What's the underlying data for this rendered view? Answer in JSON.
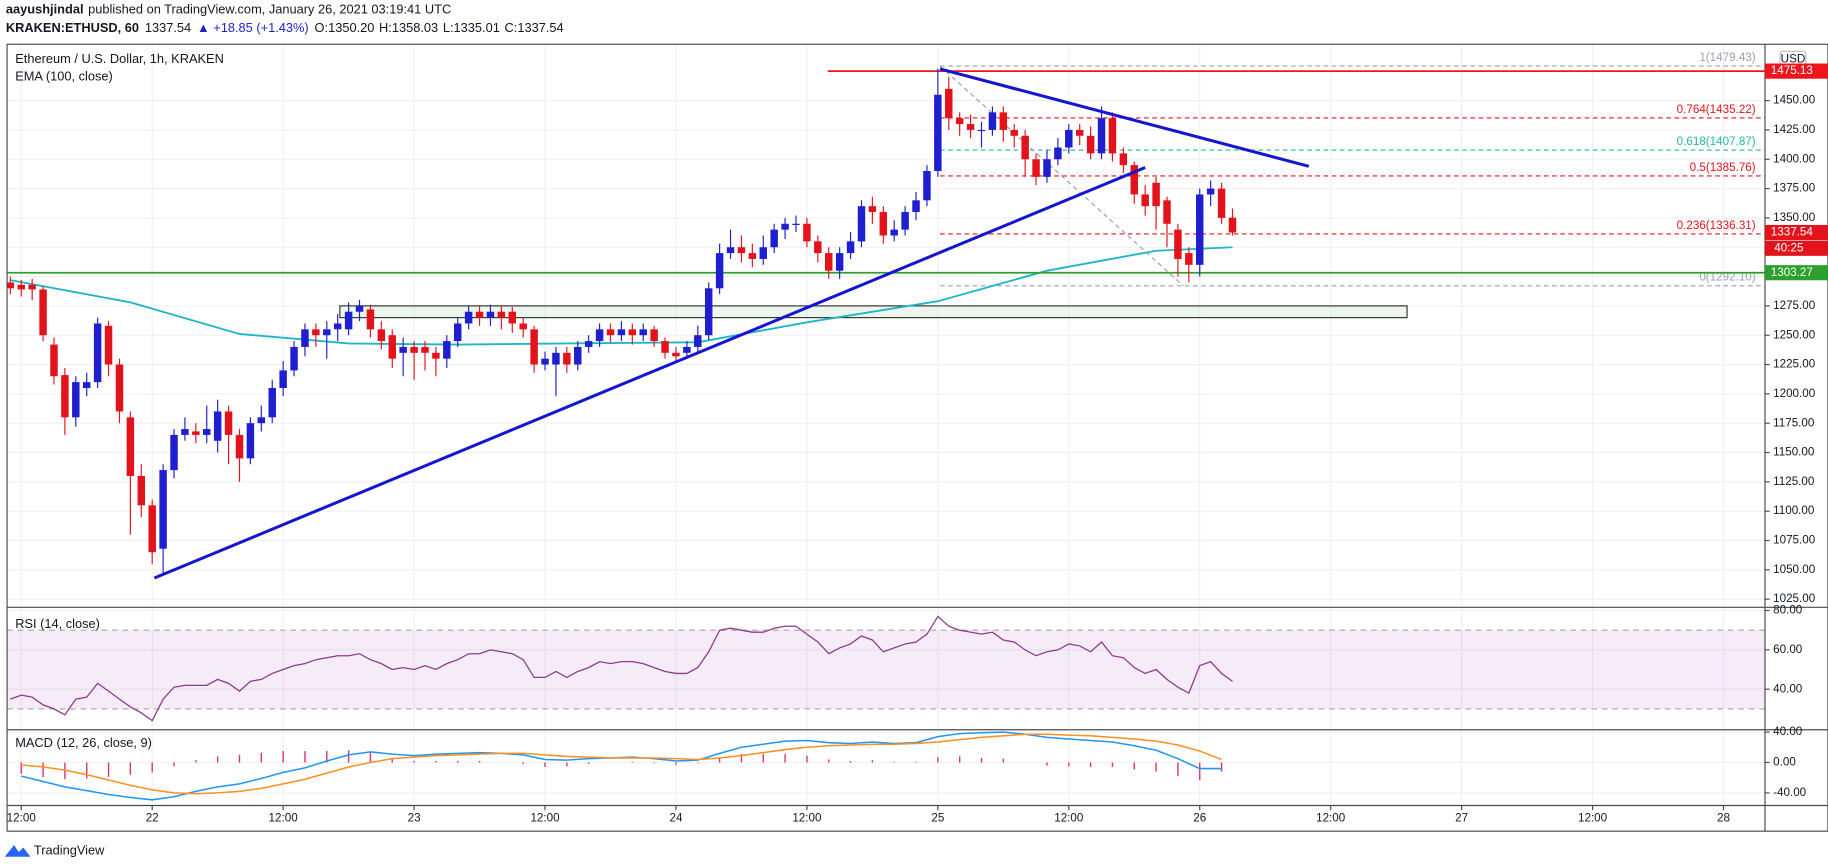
{
  "header": {
    "author": "aayushjindal",
    "published": "published on TradingView.com, January 26, 2021 03:19:41 UTC",
    "symbol": "KRAKEN:ETHUSD, 60",
    "price": "1337.54",
    "change": "▲ +18.85 (+1.43%)",
    "open": "O:1350.20",
    "high": "H:1358.03",
    "low": "L:1335.01",
    "close": "C:1337.54"
  },
  "footer": {
    "brand": "TradingView"
  },
  "chart_data": [
    {
      "type": "candlestick",
      "title": "Ethereum / U.S. Dollar, 1h, KRAKEN",
      "currency": "USD",
      "countdown": "40:25",
      "up_color": "#1f1fcf",
      "down_color": "#e3131b",
      "x": [
        -1,
        0,
        1,
        2,
        3,
        4,
        5,
        6,
        7,
        8,
        9,
        10,
        11,
        12,
        13,
        14,
        15,
        16,
        17,
        18,
        19,
        20,
        21,
        22,
        23,
        24,
        25,
        26,
        27,
        28,
        29,
        30,
        31,
        32,
        33,
        34,
        35,
        36,
        37,
        38,
        39,
        40,
        41,
        42,
        43,
        44,
        45,
        46,
        47,
        48,
        49,
        50,
        51,
        52,
        53,
        54,
        55,
        56,
        57,
        58,
        59,
        60,
        61,
        62,
        63,
        64,
        65,
        66,
        67,
        68,
        69,
        70,
        71,
        72,
        73,
        74,
        75,
        76,
        77,
        78,
        79,
        80,
        81,
        82,
        83,
        84,
        85,
        86,
        87,
        88,
        89,
        90,
        91,
        92,
        93,
        94,
        95,
        96,
        97,
        98,
        99,
        100,
        101,
        102,
        103,
        104,
        105,
        106,
        107,
        108,
        109,
        110,
        111
      ],
      "open": [
        1295,
        1293,
        1293,
        1289,
        1242,
        1216,
        1180,
        1205,
        1210,
        1258,
        1225,
        1180,
        1130,
        1105,
        1068,
        1135,
        1165,
        1168,
        1165,
        1160,
        1185,
        1165,
        1145,
        1175,
        1180,
        1205,
        1220,
        1240,
        1255,
        1250,
        1255,
        1255,
        1270,
        1272,
        1255,
        1250,
        1235,
        1240,
        1240,
        1235,
        1230,
        1245,
        1260,
        1270,
        1265,
        1270,
        1270,
        1260,
        1255,
        1225,
        1225,
        1235,
        1225,
        1240,
        1245,
        1255,
        1250,
        1255,
        1250,
        1255,
        1245,
        1235,
        1235,
        1240,
        1250,
        1290,
        1320,
        1325,
        1320,
        1315,
        1325,
        1340,
        1345,
        1345,
        1330,
        1320,
        1305,
        1320,
        1330,
        1360,
        1355,
        1335,
        1340,
        1355,
        1365,
        1390,
        1460,
        1435,
        1430,
        1425,
        1425,
        1440,
        1425,
        1420,
        1400,
        1385,
        1400,
        1410,
        1425,
        1420,
        1405,
        1435,
        1405,
        1395,
        1370,
        1380,
        1365,
        1340,
        1320,
        1310,
        1370,
        1375,
        1350.2
      ],
      "high": [
        1300,
        1297,
        1298,
        1292,
        1248,
        1222,
        1215,
        1218,
        1265,
        1262,
        1230,
        1185,
        1140,
        1110,
        1140,
        1170,
        1180,
        1175,
        1190,
        1195,
        1190,
        1170,
        1180,
        1190,
        1212,
        1228,
        1245,
        1260,
        1260,
        1262,
        1268,
        1278,
        1280,
        1276,
        1262,
        1255,
        1248,
        1245,
        1245,
        1240,
        1250,
        1265,
        1275,
        1275,
        1276,
        1275,
        1274,
        1265,
        1258,
        1236,
        1240,
        1240,
        1245,
        1250,
        1260,
        1260,
        1262,
        1260,
        1260,
        1258,
        1248,
        1240,
        1245,
        1258,
        1295,
        1328,
        1340,
        1335,
        1328,
        1335,
        1345,
        1350,
        1352,
        1350,
        1335,
        1325,
        1325,
        1338,
        1365,
        1368,
        1360,
        1348,
        1360,
        1372,
        1395,
        1477,
        1470,
        1440,
        1438,
        1432,
        1445,
        1445,
        1430,
        1425,
        1405,
        1408,
        1418,
        1430,
        1430,
        1428,
        1445,
        1440,
        1410,
        1398,
        1378,
        1385,
        1368,
        1345,
        1325,
        1375,
        1382,
        1380,
        1358.03
      ],
      "low": [
        1285,
        1283,
        1280,
        1245,
        1208,
        1165,
        1172,
        1198,
        1205,
        1215,
        1175,
        1080,
        1095,
        1055,
        1045,
        1128,
        1160,
        1158,
        1158,
        1150,
        1140,
        1125,
        1140,
        1168,
        1175,
        1198,
        1215,
        1232,
        1240,
        1230,
        1245,
        1250,
        1262,
        1248,
        1238,
        1222,
        1215,
        1212,
        1220,
        1215,
        1222,
        1240,
        1255,
        1258,
        1258,
        1255,
        1252,
        1248,
        1218,
        1220,
        1198,
        1218,
        1220,
        1235,
        1240,
        1244,
        1245,
        1242,
        1245,
        1240,
        1230,
        1228,
        1230,
        1236,
        1246,
        1285,
        1315,
        1312,
        1308,
        1310,
        1320,
        1332,
        1338,
        1325,
        1312,
        1298,
        1298,
        1315,
        1325,
        1345,
        1328,
        1330,
        1335,
        1348,
        1360,
        1385,
        1425,
        1420,
        1418,
        1410,
        1420,
        1415,
        1410,
        1385,
        1378,
        1380,
        1395,
        1405,
        1412,
        1400,
        1400,
        1398,
        1388,
        1362,
        1352,
        1340,
        1325,
        1300,
        1295,
        1300,
        1360,
        1345,
        1335.01
      ],
      "close": [
        1290,
        1289,
        1289,
        1250,
        1215,
        1180,
        1210,
        1210,
        1260,
        1225,
        1185,
        1130,
        1105,
        1065,
        1135,
        1165,
        1170,
        1165,
        1170,
        1185,
        1165,
        1145,
        1175,
        1180,
        1205,
        1220,
        1240,
        1255,
        1250,
        1255,
        1260,
        1270,
        1275,
        1255,
        1245,
        1230,
        1240,
        1235,
        1235,
        1230,
        1245,
        1260,
        1270,
        1265,
        1270,
        1265,
        1260,
        1255,
        1225,
        1230,
        1235,
        1225,
        1240,
        1245,
        1255,
        1250,
        1255,
        1250,
        1255,
        1245,
        1235,
        1232,
        1240,
        1250,
        1290,
        1320,
        1325,
        1320,
        1315,
        1325,
        1340,
        1345,
        1345,
        1330,
        1320,
        1305,
        1320,
        1330,
        1360,
        1355,
        1335,
        1340,
        1355,
        1365,
        1390,
        1455,
        1435,
        1430,
        1425,
        1425,
        1440,
        1425,
        1420,
        1400,
        1385,
        1400,
        1410,
        1425,
        1420,
        1405,
        1435,
        1405,
        1395,
        1370,
        1360,
        1360,
        1345,
        1315,
        1310,
        1370,
        1375,
        1350,
        1337.54
      ],
      "series": [
        {
          "name": "EMA (100, close)",
          "color": "#1fb5c9",
          "x": [
            -1,
            10,
            20,
            30,
            40,
            50,
            62,
            72,
            84,
            94,
            104,
            111
          ],
          "values": [
            1297,
            1278,
            1251,
            1243,
            1242,
            1243,
            1244,
            1261,
            1279,
            1305,
            1322,
            1325
          ]
        }
      ],
      "hlines": [
        {
          "price": 1475.13,
          "color": "#f0141c",
          "start": 73.9
        },
        {
          "price": 1303.27,
          "color": "#2ca02c"
        }
      ],
      "zone": {
        "x": [
          29.2,
          127
        ],
        "y": [
          1265,
          1275
        ]
      },
      "trendlines": [
        {
          "x": [
            12.2,
            103
          ],
          "y": [
            1043,
            1393
          ],
          "color": "#1515d0"
        },
        {
          "x": [
            84.2,
            118
          ],
          "y": [
            1477,
            1394
          ],
          "color": "#1515d0"
        }
      ],
      "fib": {
        "x": [
          84.2,
          106.5
        ],
        "levels": [
          {
            "price": 1479.43,
            "label": "1(1479.43)",
            "color": "#9aa0ad"
          },
          {
            "price": 1435.22,
            "label": "0.764(1435.22)",
            "color": "#e3131b"
          },
          {
            "price": 1407.87,
            "label": "0.618(1407.87)",
            "color": "#22b89a"
          },
          {
            "price": 1385.76,
            "label": "0.5(1385.76)",
            "color": "#e3131b"
          },
          {
            "price": 1336.31,
            "label": "0.236(1336.31)",
            "color": "#e3131b"
          },
          {
            "price": 1292.1,
            "label": "0(1292.10)",
            "color": "#9aa0ad"
          }
        ]
      },
      "xlim": [
        -1.3,
        159.8
      ],
      "ylim": [
        1019,
        1498
      ],
      "xticks": [
        {
          "value": 0,
          "label": "12:00"
        },
        {
          "value": 12,
          "label": "22"
        },
        {
          "value": 24,
          "label": "12:00"
        },
        {
          "value": 36,
          "label": "23"
        },
        {
          "value": 48,
          "label": "12:00"
        },
        {
          "value": 60,
          "label": "24"
        },
        {
          "value": 72,
          "label": "12:00"
        },
        {
          "value": 84,
          "label": "25"
        },
        {
          "value": 96,
          "label": "12:00"
        },
        {
          "value": 108,
          "label": "26"
        },
        {
          "value": 120,
          "label": "12:00"
        },
        {
          "value": 132,
          "label": "27"
        },
        {
          "value": 144,
          "label": "12:00"
        },
        {
          "value": 156,
          "label": "28"
        }
      ],
      "yticks": [
        {
          "value": 1025,
          "label": "1025.00"
        },
        {
          "value": 1050,
          "label": "1050.00"
        },
        {
          "value": 1075,
          "label": "1075.00"
        },
        {
          "value": 1100,
          "label": "1100.00"
        },
        {
          "value": 1125,
          "label": "1125.00"
        },
        {
          "value": 1150,
          "label": "1150.00"
        },
        {
          "value": 1175,
          "label": "1175.00"
        },
        {
          "value": 1200,
          "label": "1200.00"
        },
        {
          "value": 1225,
          "label": "1225.00"
        },
        {
          "value": 1250,
          "label": "1250.00"
        },
        {
          "value": 1275,
          "label": "1275.00"
        },
        {
          "value": 1300,
          "label": "1300.00"
        },
        {
          "value": 1325,
          "label": "1325.00"
        },
        {
          "value": 1350,
          "label": "1350.00"
        },
        {
          "value": 1375,
          "label": "1375.00"
        },
        {
          "value": 1400,
          "label": "1400.00"
        },
        {
          "value": 1425,
          "label": "1425.00"
        },
        {
          "value": 1450,
          "label": "1450.00"
        }
      ],
      "grid": true
    },
    {
      "type": "line",
      "title": "RSI (14, close)",
      "color": "#8e3a8e",
      "band": [
        30,
        70
      ],
      "band_color": "rgba(156,39,176,0.09)",
      "x": [
        -1,
        0,
        1,
        2,
        3,
        4,
        5,
        6,
        7,
        8,
        9,
        10,
        11,
        12,
        13,
        14,
        15,
        16,
        17,
        18,
        19,
        20,
        21,
        22,
        23,
        24,
        25,
        26,
        27,
        28,
        29,
        30,
        31,
        32,
        33,
        34,
        35,
        36,
        37,
        38,
        39,
        40,
        41,
        42,
        43,
        44,
        45,
        46,
        47,
        48,
        49,
        50,
        51,
        52,
        53,
        54,
        55,
        56,
        57,
        58,
        59,
        60,
        61,
        62,
        63,
        64,
        65,
        66,
        67,
        68,
        69,
        70,
        71,
        72,
        73,
        74,
        75,
        76,
        77,
        78,
        79,
        80,
        81,
        82,
        83,
        84,
        85,
        86,
        87,
        88,
        89,
        90,
        91,
        92,
        93,
        94,
        95,
        96,
        97,
        98,
        99,
        100,
        101,
        102,
        103,
        104,
        105,
        106,
        107,
        108,
        109,
        110,
        111
      ],
      "values": [
        35,
        37,
        36,
        32,
        30,
        27,
        35,
        36,
        43,
        39,
        35,
        31,
        28,
        24,
        35,
        41,
        42,
        42,
        42,
        45,
        43,
        39,
        44,
        45,
        48,
        50,
        52,
        53,
        55,
        56,
        57,
        57,
        58,
        55,
        53,
        50,
        51,
        50,
        52,
        50,
        53,
        55,
        58,
        58,
        60,
        59,
        58,
        55,
        46,
        46,
        49,
        46,
        49,
        51,
        54,
        53,
        54,
        54,
        53,
        51,
        49,
        48,
        48,
        51,
        59,
        70,
        71,
        70,
        69,
        69,
        71,
        72,
        72,
        68,
        64,
        58,
        61,
        63,
        67,
        65,
        59,
        61,
        63,
        64,
        68,
        77,
        72,
        70,
        69,
        68,
        69,
        65,
        64,
        60,
        57,
        59,
        60,
        63,
        62,
        59,
        64,
        57,
        56,
        51,
        48,
        50,
        45,
        41,
        38,
        52,
        54,
        48,
        44
      ],
      "ylim": [
        20,
        81
      ],
      "yticks": [
        {
          "value": 40,
          "label": "40.00"
        },
        {
          "value": 60,
          "label": "60.00"
        },
        {
          "value": 80,
          "label": "80.00"
        }
      ]
    },
    {
      "type": "macd",
      "title": "MACD (12, 26, close, 9)",
      "x": [
        0,
        2,
        4,
        6,
        8,
        10,
        12,
        14,
        16,
        18,
        20,
        22,
        24,
        26,
        28,
        30,
        32,
        34,
        36,
        38,
        40,
        42,
        44,
        46,
        48,
        50,
        52,
        54,
        56,
        58,
        60,
        62,
        64,
        66,
        68,
        70,
        72,
        74,
        76,
        78,
        80,
        82,
        84,
        86,
        88,
        90,
        92,
        94,
        96,
        98,
        100,
        102,
        104,
        106,
        108,
        110
      ],
      "macd": {
        "color": "#2196f3",
        "values": [
          -18,
          -25,
          -32,
          -37,
          -42,
          -46,
          -49,
          -45,
          -38,
          -32,
          -28,
          -21,
          -13,
          -7,
          2,
          10,
          14,
          11,
          9,
          11,
          12,
          13,
          12,
          10,
          4,
          3,
          5,
          6,
          7,
          5,
          2,
          3,
          12,
          20,
          24,
          28,
          29,
          26,
          25,
          27,
          25,
          26,
          34,
          38,
          39,
          40,
          37,
          33,
          31,
          29,
          27,
          22,
          16,
          5,
          -8,
          -8
        ]
      },
      "signal": {
        "color": "#ff8f1f",
        "values": [
          -3,
          -6,
          -10,
          -16,
          -23,
          -30,
          -36,
          -40,
          -41,
          -40,
          -38,
          -34,
          -28,
          -22,
          -14,
          -6,
          0,
          5,
          7,
          9,
          10,
          11,
          12,
          12,
          10,
          8,
          7,
          6,
          6,
          6,
          5,
          4,
          6,
          9,
          13,
          17,
          20,
          22,
          23,
          24,
          24,
          25,
          27,
          30,
          33,
          35,
          37,
          37,
          36,
          35,
          33,
          31,
          28,
          23,
          15,
          4
        ]
      },
      "histogram": {
        "color": "#e0306e",
        "values": [
          -15,
          -19,
          -22,
          -21,
          -19,
          -16,
          -13,
          -5,
          3,
          8,
          10,
          13,
          15,
          15,
          15,
          16,
          14,
          6,
          2,
          2,
          2,
          2,
          0,
          -2,
          -6,
          -5,
          -2,
          0,
          1,
          -1,
          -3,
          -1,
          6,
          11,
          11,
          11,
          9,
          4,
          2,
          3,
          1,
          1,
          7,
          8,
          6,
          5,
          0,
          -4,
          -5,
          -6,
          -6,
          -9,
          -12,
          -18,
          -23,
          -12
        ]
      },
      "ylim": [
        -55,
        41.5
      ],
      "yticks": [
        {
          "value": 40,
          "label": "40.00"
        },
        {
          "value": 0,
          "label": "0.00"
        },
        {
          "value": -40,
          "label": "-40.00"
        }
      ]
    }
  ]
}
